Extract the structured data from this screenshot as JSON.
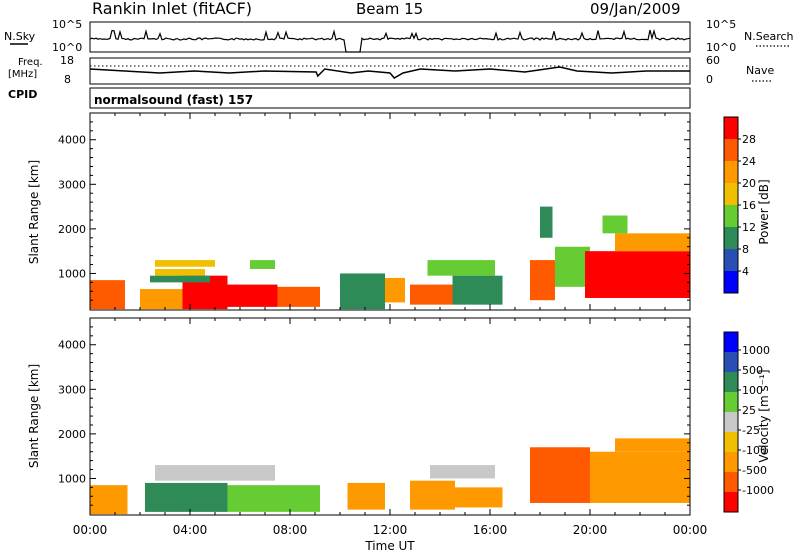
{
  "header": {
    "station": "Rankin Inlet (fitACF)",
    "beam": "Beam 15",
    "date": "09/Jan/2009"
  },
  "panels": {
    "noise": {
      "left_label": "N.Sky",
      "right_label": "N.Search",
      "left_top": "10^5",
      "left_bottom": "10^0",
      "right_top": "10^5",
      "right_bottom": "10^0"
    },
    "freq": {
      "left_label_1": "Freq.",
      "left_label_2": "[MHz]",
      "right_label": "Nave",
      "left_top": "18",
      "left_bottom": "8",
      "right_top": "60",
      "right_bottom": "0"
    },
    "cpid": {
      "left_label": "CPID",
      "text": "normalsound (fast) 157"
    }
  },
  "colors": {
    "power": [
      "#0000ff",
      "#2a4fb4",
      "#2e8b57",
      "#66cc33",
      "#f0c000",
      "#ff9900",
      "#ff5a00",
      "#ff0000"
    ],
    "velocity": [
      "#ff0000",
      "#ff5a00",
      "#ff9900",
      "#f0c000",
      "#c8c8c8",
      "#66cc33",
      "#2e8b57",
      "#2a4fb4",
      "#0000ff"
    ]
  },
  "chart_data": [
    {
      "type": "heatmap",
      "name": "power",
      "title": "",
      "xlabel": "",
      "ylabel": "Slant Range [km]",
      "ylim": [
        180,
        4600
      ],
      "yticks": [
        "1000",
        "2000",
        "3000",
        "4000"
      ],
      "colorbar_label": "Power [dB]",
      "colorbar_ticks": [
        "4",
        "8",
        "12",
        "16",
        "20",
        "24",
        "28"
      ],
      "colorbar_range": [
        0,
        32
      ],
      "cells": [
        {
          "t0": 0.0,
          "t1": 1.4,
          "r0": 200,
          "r1": 850,
          "v": 25
        },
        {
          "t0": 2.0,
          "t1": 3.7,
          "r0": 200,
          "r1": 650,
          "v": 20
        },
        {
          "t0": 3.7,
          "t1": 5.5,
          "r0": 200,
          "r1": 950,
          "v": 28
        },
        {
          "t0": 5.5,
          "t1": 7.5,
          "r0": 250,
          "r1": 750,
          "v": 30
        },
        {
          "t0": 7.5,
          "t1": 9.2,
          "r0": 250,
          "r1": 700,
          "v": 27
        },
        {
          "t0": 2.6,
          "t1": 4.6,
          "r0": 950,
          "r1": 1100,
          "v": 16
        },
        {
          "t0": 2.6,
          "t1": 5.0,
          "r0": 1150,
          "r1": 1300,
          "v": 18
        },
        {
          "t0": 6.4,
          "t1": 7.4,
          "r0": 1100,
          "r1": 1300,
          "v": 14
        },
        {
          "t0": 2.4,
          "t1": 4.8,
          "r0": 800,
          "r1": 950,
          "v": 9
        },
        {
          "t0": 10.0,
          "t1": 11.8,
          "r0": 200,
          "r1": 1000,
          "v": 10
        },
        {
          "t0": 11.8,
          "t1": 12.6,
          "r0": 350,
          "r1": 900,
          "v": 22
        },
        {
          "t0": 12.8,
          "t1": 14.5,
          "r0": 300,
          "r1": 750,
          "v": 27
        },
        {
          "t0": 13.5,
          "t1": 16.2,
          "r0": 950,
          "r1": 1300,
          "v": 12
        },
        {
          "t0": 14.5,
          "t1": 16.5,
          "r0": 300,
          "r1": 950,
          "v": 9
        },
        {
          "t0": 17.6,
          "t1": 18.6,
          "r0": 400,
          "r1": 1300,
          "v": 24
        },
        {
          "t0": 18.6,
          "t1": 20.0,
          "r0": 700,
          "r1": 1600,
          "v": 14
        },
        {
          "t0": 19.8,
          "t1": 24.0,
          "r0": 450,
          "r1": 1500,
          "v": 29
        },
        {
          "t0": 21.0,
          "t1": 24.0,
          "r0": 1500,
          "r1": 1900,
          "v": 23
        },
        {
          "t0": 20.5,
          "t1": 21.5,
          "r0": 1900,
          "r1": 2300,
          "v": 14
        },
        {
          "t0": 18.0,
          "t1": 18.5,
          "r0": 1800,
          "r1": 2500,
          "v": 10
        }
      ]
    },
    {
      "type": "heatmap",
      "name": "velocity",
      "title": "",
      "xlabel": "Time UT",
      "ylabel": "Slant Range [km]",
      "ylim": [
        180,
        4600
      ],
      "yticks": [
        "1000",
        "2000",
        "3000",
        "4000"
      ],
      "xticks": [
        "00:00",
        "04:00",
        "08:00",
        "12:00",
        "16:00",
        "20:00",
        "00:00"
      ],
      "xlim": [
        0,
        24
      ],
      "colorbar_label": "Velocity [m s⁻¹]",
      "colorbar_ticks": [
        "1000",
        "500",
        "100",
        "25",
        "-25",
        "-100",
        "-500",
        "-1000"
      ],
      "cells": [
        {
          "t0": 0.0,
          "t1": 1.5,
          "r0": 200,
          "r1": 850,
          "v": -150
        },
        {
          "t0": 2.2,
          "t1": 5.5,
          "r0": 250,
          "r1": 900,
          "v": 120
        },
        {
          "t0": 5.5,
          "t1": 9.2,
          "r0": 250,
          "r1": 850,
          "v": 80
        },
        {
          "t0": 2.6,
          "t1": 7.4,
          "r0": 950,
          "r1": 1300,
          "v": 0
        },
        {
          "t0": 10.3,
          "t1": 11.8,
          "r0": 300,
          "r1": 900,
          "v": -200
        },
        {
          "t0": 12.8,
          "t1": 14.6,
          "r0": 300,
          "r1": 950,
          "v": -300
        },
        {
          "t0": 13.6,
          "t1": 16.2,
          "r0": 1000,
          "r1": 1300,
          "v": 0
        },
        {
          "t0": 14.6,
          "t1": 16.5,
          "r0": 350,
          "r1": 800,
          "v": -120
        },
        {
          "t0": 17.6,
          "t1": 20.0,
          "r0": 450,
          "r1": 1700,
          "v": -600
        },
        {
          "t0": 20.0,
          "t1": 24.0,
          "r0": 450,
          "r1": 1600,
          "v": -350
        },
        {
          "t0": 21.0,
          "t1": 24.0,
          "r0": 1600,
          "r1": 1900,
          "v": -150
        }
      ]
    }
  ]
}
